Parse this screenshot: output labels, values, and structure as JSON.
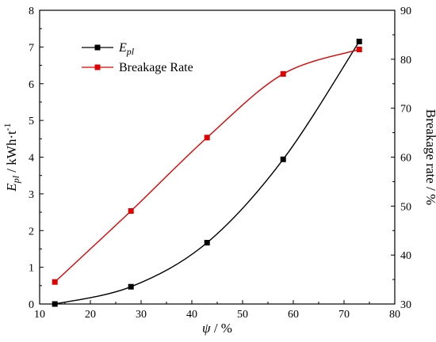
{
  "chart_data": {
    "type": "line",
    "x": [
      13,
      28,
      43,
      58,
      73
    ],
    "xlim": [
      10,
      80
    ],
    "xticks": [
      "10",
      "20",
      "30",
      "40",
      "50",
      "60",
      "70",
      "80"
    ],
    "xlabel": {
      "symbol": "ψ",
      "unit": " / %"
    },
    "left_axis": {
      "label": {
        "symbol": "E",
        "subscript": "pl",
        "unit": " / kWh·t",
        "superscript": "-1"
      },
      "ylim": [
        0,
        8
      ],
      "ticks": [
        "0",
        "1",
        "2",
        "3",
        "4",
        "5",
        "6",
        "7",
        "8"
      ]
    },
    "right_axis": {
      "label": "Breakage rate / %",
      "ylim": [
        30,
        90
      ],
      "ticks": [
        "30",
        "40",
        "50",
        "60",
        "70",
        "80",
        "90"
      ]
    },
    "series": [
      {
        "name": "E",
        "name_sub": "pl",
        "axis": "left",
        "color": "#000000",
        "marker": "square",
        "values": [
          0.0,
          0.47,
          1.67,
          3.94,
          7.15
        ]
      },
      {
        "name": "Breakage Rate",
        "axis": "right",
        "color": "#e00000",
        "marker": "square",
        "values": [
          34.5,
          49.0,
          64.0,
          77.0,
          82.0
        ]
      }
    ],
    "legend": "top-left",
    "grid": false
  }
}
